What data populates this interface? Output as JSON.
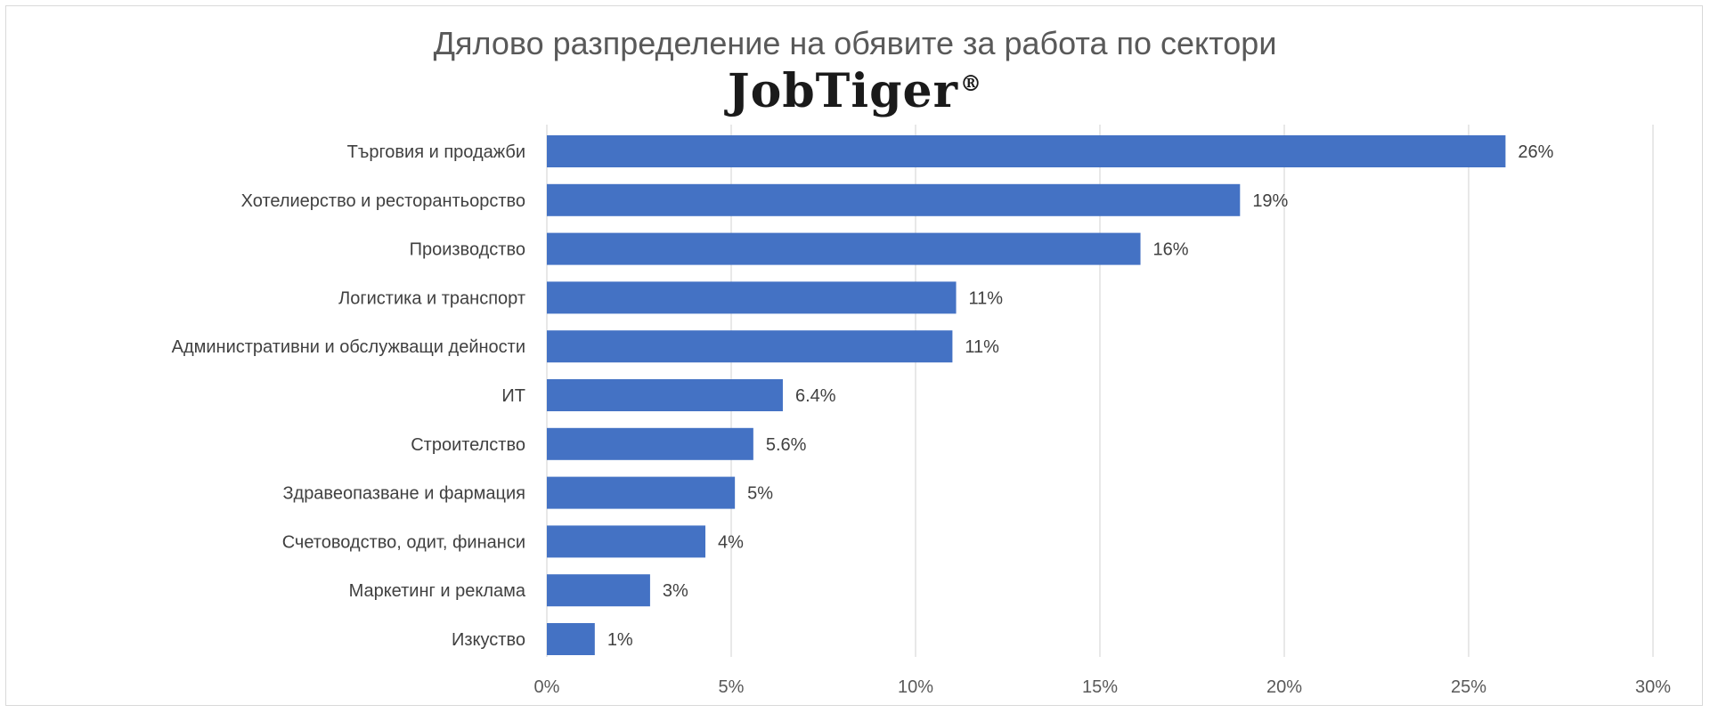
{
  "chart_data": {
    "type": "bar",
    "orientation": "horizontal",
    "title": "Дялово разпределение на обявите за работа по сектори",
    "logo_text": "JobTiger",
    "logo_mark": "®",
    "categories": [
      "Търговия и продажби",
      "Хотелиерство и ресторантьорство",
      "Производство",
      "Логистика и транспорт",
      "Административни и обслужващи дейности",
      "ИТ",
      "Строителство",
      "Здравеопазване и фармация",
      "Счетоводство, одит, финанси",
      "Маркетинг и реклама",
      "Изкуство"
    ],
    "values": [
      26,
      18.8,
      16.1,
      11.1,
      11,
      6.4,
      5.6,
      5.1,
      4.3,
      2.8,
      1.3
    ],
    "data_labels": [
      "26%",
      "19%",
      "16%",
      "11%",
      "11%",
      "6.4%",
      "5.6%",
      "5%",
      "4%",
      "3%",
      "1%"
    ],
    "xlim": [
      0,
      30
    ],
    "x_ticks": [
      0,
      5,
      10,
      15,
      20,
      25,
      30
    ],
    "x_tick_labels": [
      "0%",
      "5%",
      "10%",
      "15%",
      "20%",
      "25%",
      "30%"
    ],
    "xlabel": "",
    "ylabel": "",
    "grid": "vertical",
    "legend": "none",
    "bar_color": "#4472c4",
    "grid_color": "#d9d9d9"
  }
}
